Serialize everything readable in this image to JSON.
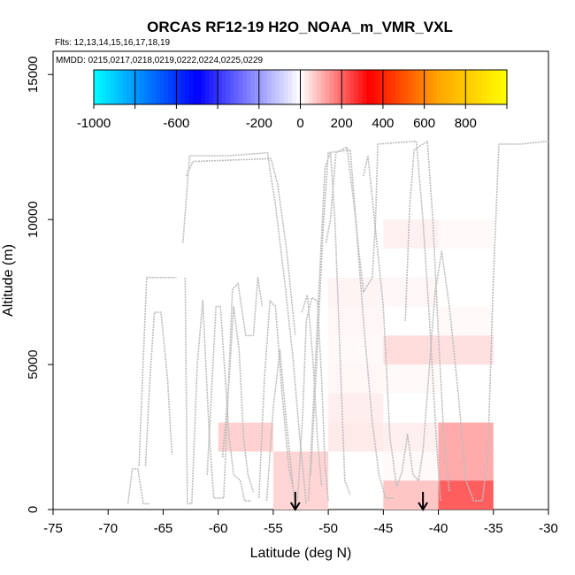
{
  "chart_data": {
    "type": "heatmap",
    "title": "ORCAS RF12-19 H2O_NOAA_m_VMR_VXL",
    "flights_note": "Flts: 12,13,14,15,16,17,18,19",
    "dates_note": "MMDD: 0215,0217,0218,0219,0222,0224,0225,0229",
    "xlabel": "Latitude (deg N)",
    "ylabel": "Altitude (m)",
    "xlim": [
      -75,
      -30
    ],
    "ylim": [
      0,
      15800
    ],
    "xticks": [
      "-75",
      "-70",
      "-65",
      "-60",
      "-55",
      "-50",
      "-45",
      "-40",
      "-35",
      "-30"
    ],
    "yticks": [
      "0",
      "5000",
      "10000",
      "15000"
    ],
    "colorbar": {
      "range": [
        -1000,
        1000
      ],
      "ticks": [
        "-1000",
        "-600",
        "-200",
        "0",
        "200",
        "400",
        "600",
        "800"
      ],
      "colors_negative": [
        "#00ffff",
        "#0000ff",
        "#ffffff"
      ],
      "colors_positive": [
        "#ffffff",
        "#ff0000",
        "#ffa500",
        "#ffff00"
      ]
    },
    "cells": [
      {
        "lat0": -60,
        "lat1": -55,
        "alt0": 2000,
        "alt1": 3000,
        "value": 60
      },
      {
        "lat0": -55,
        "lat1": -50,
        "alt0": 0,
        "alt1": 2000,
        "value": 55
      },
      {
        "lat0": -50,
        "lat1": -45,
        "alt0": 7000,
        "alt1": 8000,
        "value": 15
      },
      {
        "lat0": -50,
        "lat1": -45,
        "alt0": 6000,
        "alt1": 7000,
        "value": 10
      },
      {
        "lat0": -50,
        "lat1": -45,
        "alt0": 5000,
        "alt1": 6000,
        "value": 8
      },
      {
        "lat0": -50,
        "lat1": -45,
        "alt0": 4000,
        "alt1": 5000,
        "value": 12
      },
      {
        "lat0": -50,
        "lat1": -45,
        "alt0": 3000,
        "alt1": 4000,
        "value": 22
      },
      {
        "lat0": -50,
        "lat1": -45,
        "alt0": 2000,
        "alt1": 3000,
        "value": 28
      },
      {
        "lat0": -45,
        "lat1": -40,
        "alt0": 9000,
        "alt1": 10000,
        "value": 18
      },
      {
        "lat0": -45,
        "lat1": -40,
        "alt0": 7000,
        "alt1": 8000,
        "value": 10
      },
      {
        "lat0": -45,
        "lat1": -40,
        "alt0": 5000,
        "alt1": 6000,
        "value": 45
      },
      {
        "lat0": -45,
        "lat1": -40,
        "alt0": 4000,
        "alt1": 5000,
        "value": 8
      },
      {
        "lat0": -45,
        "lat1": -40,
        "alt0": 2000,
        "alt1": 3000,
        "value": 20
      },
      {
        "lat0": -45,
        "lat1": -40,
        "alt0": 1000,
        "alt1": 2000,
        "value": 8
      },
      {
        "lat0": -45,
        "lat1": -40,
        "alt0": 0,
        "alt1": 1000,
        "value": 75
      },
      {
        "lat0": -40,
        "lat1": -35,
        "alt0": 9000,
        "alt1": 10000,
        "value": 8
      },
      {
        "lat0": -40,
        "lat1": -35,
        "alt0": 6000,
        "alt1": 7000,
        "value": 8
      },
      {
        "lat0": -40,
        "lat1": -35,
        "alt0": 5000,
        "alt1": 6000,
        "value": 40
      },
      {
        "lat0": -40,
        "lat1": -35,
        "alt0": 1000,
        "alt1": 3000,
        "value": 110
      },
      {
        "lat0": -40,
        "lat1": -35,
        "alt0": 0,
        "alt1": 1000,
        "value": 210
      }
    ],
    "arrows_lat": [
      -53,
      -41.4
    ],
    "flight_track_color": "#bdbdbd",
    "flight_tracks": [
      [
        [
          -68.2,
          200
        ],
        [
          -67.8,
          1400
        ],
        [
          -67.3,
          1400
        ],
        [
          -66.8,
          200
        ],
        [
          -66.2,
          200
        ]
      ],
      [
        [
          -66.6,
          1500
        ],
        [
          -66.2,
          4500
        ],
        [
          -65.8,
          6800
        ],
        [
          -65.2,
          6800
        ],
        [
          -64.6,
          4500
        ],
        [
          -64.2,
          1900
        ]
      ],
      [
        [
          -67.2,
          1500
        ],
        [
          -66.5,
          8000
        ],
        [
          -63.8,
          8000
        ]
      ],
      [
        [
          -63.2,
          9200
        ],
        [
          -62.6,
          12200
        ],
        [
          -59.0,
          12200
        ],
        [
          -55.5,
          12300
        ],
        [
          -55.3,
          11700
        ],
        [
          -54.8,
          10500
        ],
        [
          -54.0,
          8000
        ],
        [
          -53.2,
          5200
        ],
        [
          -52.6,
          2500
        ],
        [
          -52.0,
          200
        ]
      ],
      [
        [
          -62.9,
          11500
        ],
        [
          -62.3,
          12000
        ],
        [
          -55.2,
          12100
        ],
        [
          -54.6,
          11200
        ],
        [
          -53.8,
          9000
        ],
        [
          -53.0,
          6000
        ]
      ],
      [
        [
          -63.0,
          8000
        ],
        [
          -62.8,
          200
        ],
        [
          -62.4,
          200
        ],
        [
          -61.9,
          5000
        ],
        [
          -61.4,
          7200
        ],
        [
          -60.8,
          2500
        ],
        [
          -60.4,
          400
        ],
        [
          -59.5,
          400
        ],
        [
          -59.1,
          4000
        ],
        [
          -58.7,
          7600
        ],
        [
          -58.2,
          7800
        ],
        [
          -57.5,
          6000
        ],
        [
          -56.8,
          6000
        ],
        [
          -56.4,
          8000
        ],
        [
          -56.0,
          7000
        ]
      ],
      [
        [
          -61.0,
          1200
        ],
        [
          -60.2,
          7000
        ],
        [
          -59.8,
          7000
        ],
        [
          -59.0,
          2500
        ],
        [
          -58.6,
          1200
        ],
        [
          -58.0,
          1000
        ],
        [
          -57.6,
          300
        ],
        [
          -57.0,
          300
        ]
      ],
      [
        [
          -59.6,
          1800
        ],
        [
          -59.0,
          4500
        ],
        [
          -58.6,
          7000
        ],
        [
          -58.1,
          5500
        ],
        [
          -57.7,
          2500
        ],
        [
          -57.3,
          1200
        ],
        [
          -56.8,
          600
        ]
      ],
      [
        [
          -56.3,
          400
        ],
        [
          -55.8,
          4500
        ],
        [
          -55.3,
          7200
        ],
        [
          -54.8,
          7000
        ],
        [
          -54.2,
          4000
        ],
        [
          -53.6,
          1500
        ],
        [
          -53.0,
          300
        ]
      ],
      [
        [
          -55.6,
          300
        ],
        [
          -55.0,
          3500
        ],
        [
          -54.4,
          5500
        ],
        [
          -53.8,
          3000
        ],
        [
          -53.2,
          800
        ]
      ],
      [
        [
          -52.8,
          300
        ],
        [
          -52.3,
          3500
        ],
        [
          -52.0,
          6500
        ],
        [
          -51.5,
          7300
        ],
        [
          -51.0,
          7200
        ],
        [
          -50.6,
          4500
        ],
        [
          -50.3,
          1500
        ],
        [
          -50.0,
          300
        ]
      ],
      [
        [
          -52.4,
          6800
        ],
        [
          -51.9,
          7400
        ],
        [
          -51.4,
          5200
        ],
        [
          -51.0,
          2500
        ],
        [
          -50.6,
          800
        ]
      ],
      [
        [
          -51.6,
          1200
        ],
        [
          -51.0,
          5500
        ],
        [
          -50.5,
          9500
        ],
        [
          -50.0,
          12300
        ],
        [
          -48.0,
          12400
        ],
        [
          -47.4,
          9500
        ],
        [
          -46.8,
          7500
        ],
        [
          -46.0,
          8000
        ],
        [
          -45.7,
          10000
        ],
        [
          -45.5,
          12600
        ],
        [
          -42.0,
          12700
        ],
        [
          -41.4,
          10000
        ],
        [
          -40.8,
          6500
        ],
        [
          -40.2,
          2500
        ],
        [
          -39.8,
          300
        ]
      ],
      [
        [
          -51.8,
          300
        ],
        [
          -51.3,
          4000
        ],
        [
          -50.8,
          8000
        ],
        [
          -50.3,
          11800
        ],
        [
          -49.8,
          12300
        ],
        [
          -49.4,
          10000
        ],
        [
          -48.9,
          5000
        ],
        [
          -48.5,
          1000
        ],
        [
          -48.0,
          500
        ]
      ],
      [
        [
          -50.2,
          9200
        ],
        [
          -49.8,
          10000
        ],
        [
          -49.3,
          12300
        ],
        [
          -48.3,
          12500
        ],
        [
          -47.5,
          10000
        ],
        [
          -46.8,
          6500
        ],
        [
          -46.0,
          3000
        ],
        [
          -45.4,
          1200
        ],
        [
          -44.8,
          400
        ],
        [
          -44.0,
          400
        ]
      ],
      [
        [
          -46.8,
          11500
        ],
        [
          -46.4,
          12200
        ],
        [
          -45.0,
          7000
        ],
        [
          -44.4,
          2500
        ],
        [
          -43.8,
          800
        ],
        [
          -43.3,
          1300
        ],
        [
          -42.8,
          2600
        ],
        [
          -42.3,
          1200
        ],
        [
          -41.8,
          1000
        ],
        [
          -41.4,
          2000
        ],
        [
          -40.8,
          5000
        ],
        [
          -40.3,
          7500
        ],
        [
          -39.7,
          8900
        ],
        [
          -39.0,
          7000
        ],
        [
          -38.2,
          4000
        ],
        [
          -37.5,
          1000
        ],
        [
          -36.8,
          300
        ],
        [
          -36.0,
          300
        ],
        [
          -35.5,
          2000
        ],
        [
          -35.0,
          8000
        ],
        [
          -34.5,
          12600
        ],
        [
          -32.5,
          12600
        ],
        [
          -30.0,
          12700
        ]
      ],
      [
        [
          -43.0,
          6500
        ],
        [
          -42.6,
          10500
        ],
        [
          -42.2,
          12400
        ],
        [
          -41.0,
          12700
        ],
        [
          -40.5,
          10000
        ],
        [
          -40.0,
          6000
        ],
        [
          -39.5,
          2500
        ],
        [
          -39.0,
          600
        ]
      ]
    ]
  }
}
